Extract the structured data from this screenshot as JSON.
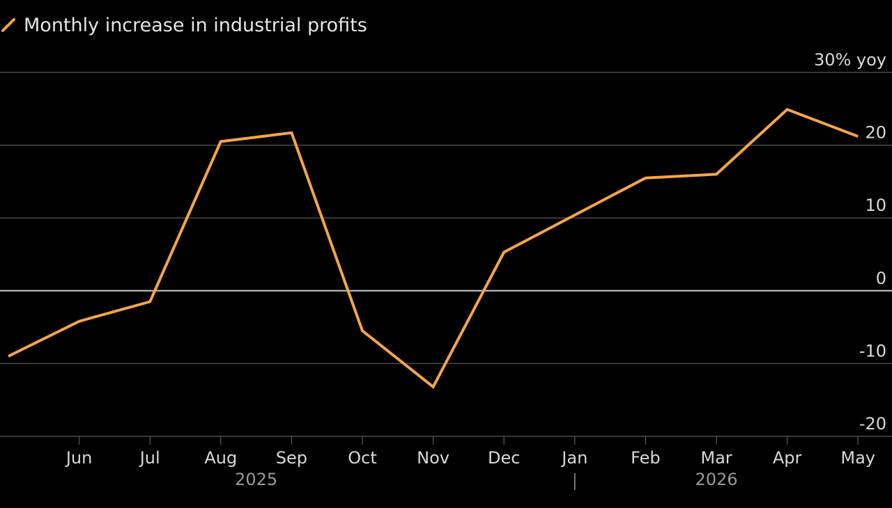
{
  "colors": {
    "background": "#000000",
    "line": "#f5a54a",
    "grid": "#4a4a4a",
    "zero": "#cfcfcf",
    "text": "#d9d9d9",
    "year": "#9a9a9a"
  },
  "chart_data": {
    "type": "line",
    "title": "",
    "legend": {
      "placement": "top-left"
    },
    "series": [
      {
        "name": "Monthly increase in industrial profits",
        "values": [
          -9,
          -4.2,
          -1.5,
          20.5,
          21.7,
          -5.5,
          -13.2,
          5.3,
          10.4,
          15.5,
          16,
          24.9,
          21.2
        ]
      }
    ],
    "x": [
      "May 2025",
      "Jun 2025",
      "Jul 2025",
      "Aug 2025",
      "Sep 2025",
      "Oct 2025",
      "Nov 2025",
      "Dec 2025",
      "Jan 2026",
      "Feb 2026",
      "Mar 2026",
      "Apr 2026",
      "May 2026"
    ],
    "x_tick_labels": [
      "Jun",
      "Jul",
      "Aug",
      "Sep",
      "Oct",
      "Nov",
      "Dec",
      "Jan",
      "Feb",
      "Mar",
      "Apr",
      "May"
    ],
    "year_labels": [
      "2025",
      "2026"
    ],
    "y_ticks": [
      {
        "value": 30,
        "label": "30% yoy"
      },
      {
        "value": 20,
        "label": "20"
      },
      {
        "value": 10,
        "label": "10"
      },
      {
        "value": 0,
        "label": "0"
      },
      {
        "value": -10,
        "label": "-10"
      },
      {
        "value": -20,
        "label": "-20"
      }
    ],
    "ylim": [
      -20,
      30
    ],
    "y_axis_position": "right",
    "grid": true
  }
}
